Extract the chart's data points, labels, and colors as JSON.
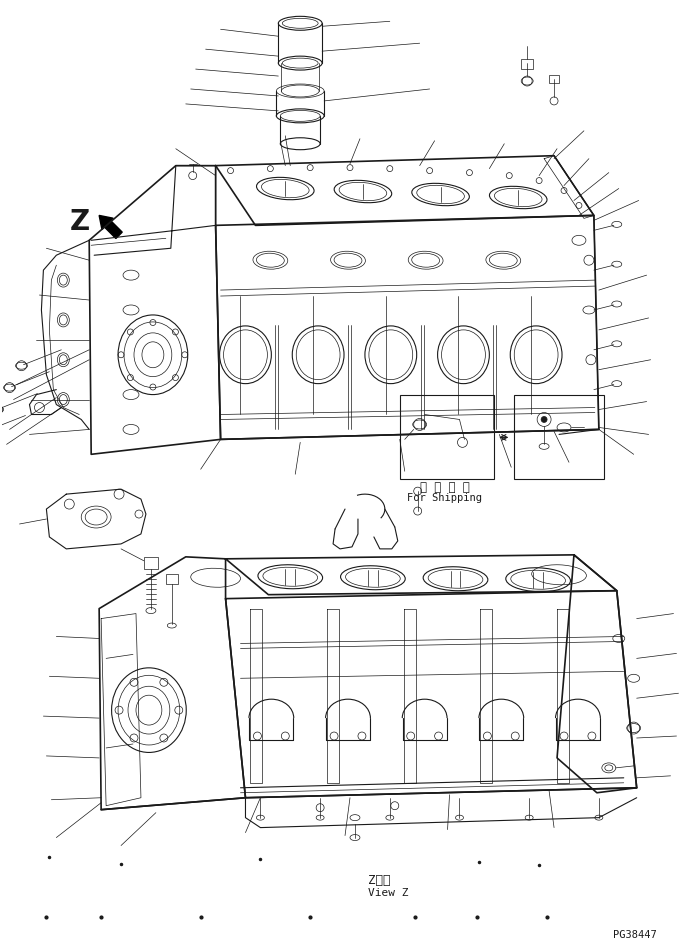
{
  "bg_color": "#ffffff",
  "line_color": "#1a1a1a",
  "fig_width": 6.98,
  "fig_height": 9.44,
  "dpi": 100,
  "view_z_label_jp": "Z　視",
  "view_z_label_en": "View Z",
  "for_shipping_jp": "運 携 部 品",
  "for_shipping_en": "For Shipping",
  "page_number": "PG38447",
  "z_label": "Z"
}
